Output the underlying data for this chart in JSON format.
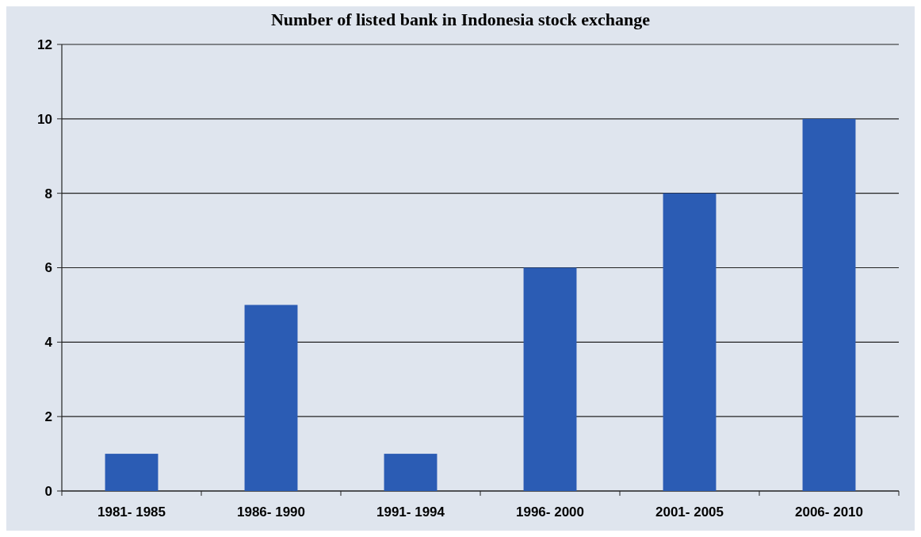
{
  "chart_data": {
    "type": "bar",
    "title": "Number of listed bank in Indonesia stock exchange",
    "categories": [
      "1981- 1985",
      "1986- 1990",
      "1991- 1994",
      "1996- 2000",
      "2001- 2005",
      "2006- 2010"
    ],
    "values": [
      1,
      5,
      1,
      6,
      8,
      10
    ],
    "color": "#2b5cb4",
    "ylim": [
      0,
      12
    ],
    "yticks": [
      0,
      2,
      4,
      6,
      8,
      10,
      12
    ],
    "grid": "y"
  }
}
